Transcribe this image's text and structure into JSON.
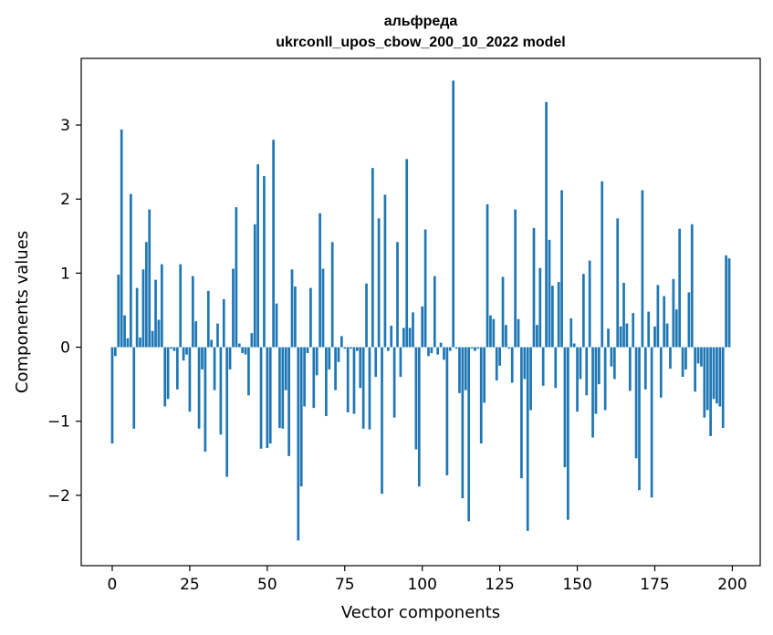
{
  "chart_data": {
    "type": "bar",
    "title": "альфреда",
    "subtitle": "ukrconll_upos_cbow_200_10_2022 model",
    "xlabel": "Vector components",
    "ylabel": "Components values",
    "xlim": [
      -10,
      209
    ],
    "ylim": [
      -2.95,
      3.9
    ],
    "xticks": [
      0,
      25,
      50,
      75,
      100,
      125,
      150,
      175,
      200
    ],
    "yticks": [
      -2,
      -1,
      0,
      1,
      2,
      3
    ],
    "ytick_labels": [
      "−2",
      "−1",
      "0",
      "1",
      "2",
      "3"
    ],
    "bar_color": "#1f77b4",
    "grid": false,
    "values": [
      -1.3,
      -0.12,
      0.98,
      2.94,
      0.43,
      0.12,
      2.07,
      -1.1,
      0.8,
      0.13,
      1.05,
      1.42,
      1.86,
      0.22,
      0.91,
      0.37,
      1.12,
      -0.8,
      -0.7,
      -0.02,
      -0.05,
      -0.57,
      1.12,
      -0.18,
      -0.1,
      -0.87,
      0.96,
      0.35,
      -1.1,
      -0.3,
      -1.41,
      0.76,
      0.1,
      -0.58,
      0.32,
      -1.18,
      0.65,
      -1.75,
      -0.3,
      1.06,
      1.89,
      0.05,
      -0.08,
      -0.1,
      -0.65,
      0.19,
      1.66,
      2.47,
      -1.37,
      2.31,
      -1.36,
      -1.3,
      2.8,
      0.59,
      -1.09,
      -1.1,
      -0.58,
      -1.47,
      1.05,
      0.82,
      -2.61,
      -1.88,
      -0.8,
      -0.08,
      0.8,
      -0.82,
      -0.38,
      1.81,
      1.06,
      -0.93,
      -0.3,
      1.42,
      -0.58,
      -0.2,
      0.15,
      -0.02,
      -0.88,
      -0.02,
      -0.9,
      -0.05,
      -0.55,
      -1.1,
      0.86,
      -1.11,
      2.42,
      -0.4,
      1.74,
      -1.98,
      2.06,
      -0.05,
      0.29,
      -0.95,
      1.42,
      -0.4,
      0.26,
      2.54,
      0.26,
      0.47,
      -1.38,
      -1.88,
      0.55,
      1.59,
      -0.12,
      -0.08,
      0.96,
      -0.1,
      0.06,
      -0.17,
      -1.73,
      -0.05,
      3.6,
      -0.02,
      -0.62,
      -2.04,
      -0.58,
      -2.35,
      -0.02,
      -0.05,
      -0.02,
      -1.3,
      -0.75,
      1.93,
      0.43,
      0.38,
      -0.45,
      -0.25,
      0.95,
      0.3,
      -0.02,
      -0.48,
      1.86,
      0.38,
      -1.77,
      -0.43,
      -2.48,
      -0.85,
      1.61,
      0.3,
      1.07,
      -0.52,
      3.31,
      1.45,
      0.83,
      -0.55,
      0.88,
      2.12,
      -1.62,
      -2.33,
      0.39,
      0.05,
      -0.87,
      -0.43,
      0.99,
      -0.65,
      1.17,
      -1.22,
      -0.9,
      -0.5,
      2.24,
      -0.85,
      0.25,
      -0.26,
      -0.43,
      1.74,
      0.28,
      0.87,
      0.32,
      -0.59,
      0.46,
      -1.5,
      -1.93,
      2.12,
      -0.57,
      0.48,
      -2.03,
      0.28,
      0.84,
      -0.68,
      0.69,
      0.32,
      -0.29,
      0.92,
      0.51,
      1.6,
      -0.4,
      -0.3,
      0.74,
      1.66,
      -0.6,
      -0.22,
      -0.26,
      -0.95,
      -0.85,
      -1.2,
      -0.7,
      -0.76,
      -0.8,
      -1.09,
      1.24,
      1.2
    ]
  }
}
